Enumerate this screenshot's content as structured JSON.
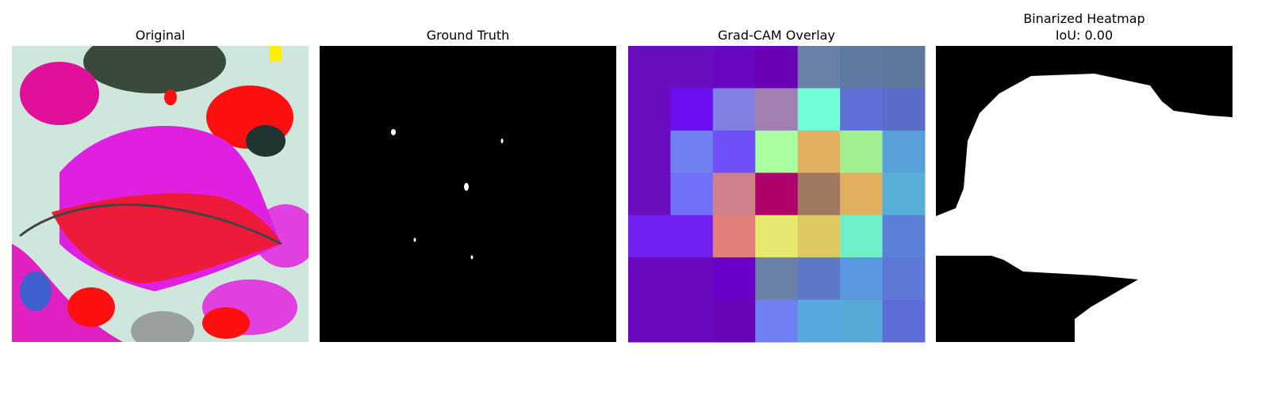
{
  "panels": [
    {
      "title": "Original"
    },
    {
      "title": "Ground Truth"
    },
    {
      "title": "Grad-CAM Overlay"
    },
    {
      "title": "Binarized Heatmap",
      "subtitle": "IoU: 0.00"
    }
  ]
}
